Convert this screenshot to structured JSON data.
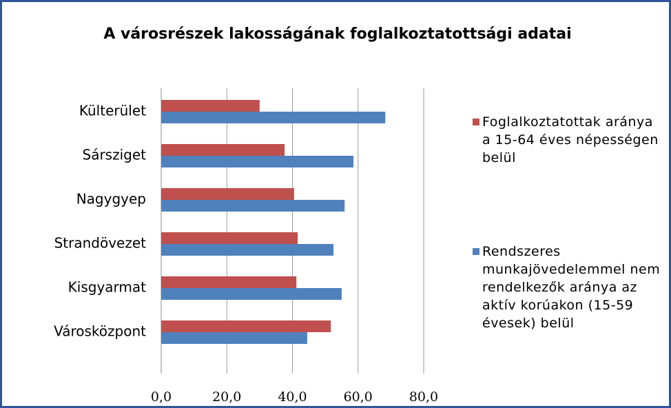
{
  "chart_data": {
    "type": "barh",
    "title": "A városrészek lakosságának foglalkoztatottsági adatai",
    "categories": [
      "Külterület",
      "Sársziget",
      "Nagygyep",
      "Strandövezet",
      "Kisgyarmat",
      "Városközpont"
    ],
    "series": [
      {
        "name": "Foglalkoztatottak aránya a 15-64 éves népességen belül",
        "color": "#c0504d",
        "values": [
          30.0,
          37.6,
          40.5,
          41.6,
          41.2,
          51.7
        ]
      },
      {
        "name": "Rendszeres munkajövedelemmel nem rendelkezők aránya az aktív korúakon (15-59 évesek) belül",
        "color": "#4f81bd",
        "values": [
          68.3,
          58.6,
          55.9,
          52.5,
          55.0,
          44.5
        ]
      }
    ],
    "xlim": [
      0,
      80
    ],
    "xticks": [
      {
        "value": 0,
        "label": "0,0"
      },
      {
        "value": 20,
        "label": "20,0"
      },
      {
        "value": 40,
        "label": "40,0"
      },
      {
        "value": 60,
        "label": "60,0"
      },
      {
        "value": 80,
        "label": "80,0"
      }
    ],
    "grid": true,
    "legend": "right"
  }
}
